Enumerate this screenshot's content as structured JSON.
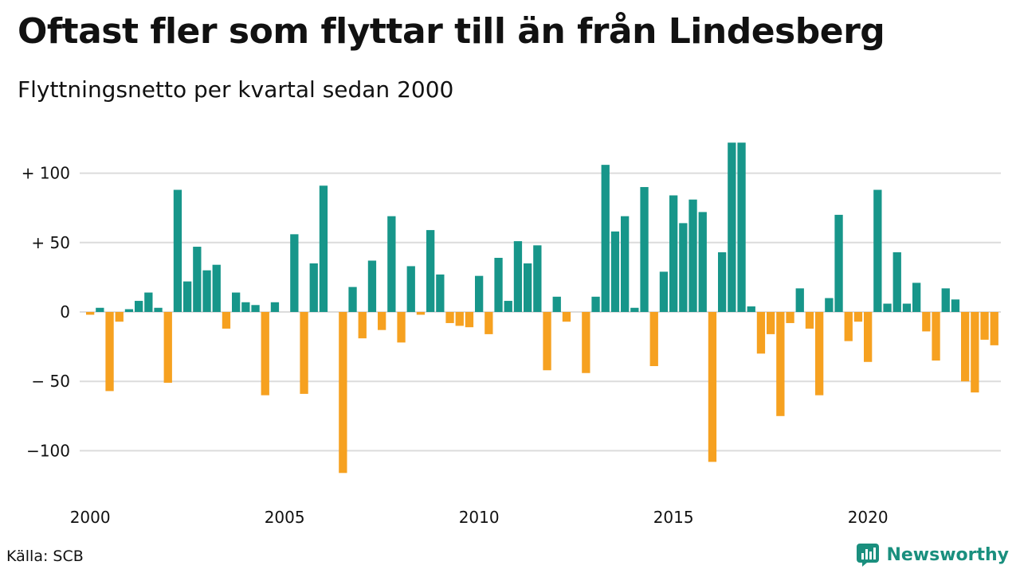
{
  "title": "Oftast fler som flyttar till än från Lindesberg",
  "subtitle": "Flyttningsnetto per kvartal sedan 2000",
  "source": "Källa: SCB",
  "brand": {
    "name": "Newsworthy",
    "icon": "newsworthy-logo-icon",
    "color": "#1a8f7e"
  },
  "colors": {
    "positive": "#17968a",
    "negative": "#f6a120",
    "grid": "#dcdcdc"
  },
  "chart_data": {
    "type": "bar",
    "title": "Oftast fler som flyttar till än från Lindesberg",
    "subtitle": "Flyttningsnetto per kvartal sedan 2000",
    "x_start": "2000-Q1",
    "x_ticks": [
      "2000",
      "2005",
      "2010",
      "2015",
      "2020"
    ],
    "y_ticks": [
      {
        "value": 100,
        "label": "+ 100"
      },
      {
        "value": 50,
        "label": "+  50"
      },
      {
        "value": 0,
        "label": "0"
      },
      {
        "value": -50,
        "label": "− 50"
      },
      {
        "value": -100,
        "label": "−100"
      }
    ],
    "ylim": [
      -120,
      124
    ],
    "grid": true,
    "series": [
      {
        "values": [
          -2,
          3,
          -57,
          -7,
          2,
          8,
          14,
          3,
          -51,
          88,
          22,
          47,
          30,
          34,
          -12,
          14,
          7,
          5,
          -60,
          7,
          0,
          56,
          -59,
          35,
          91,
          0,
          -116,
          18,
          -19,
          37,
          -13,
          69,
          -22,
          33,
          -2,
          59,
          27,
          -8,
          -10,
          -11,
          26,
          -16,
          39,
          8,
          51,
          35,
          48,
          -42,
          11,
          -7,
          0,
          -44,
          11,
          106,
          58,
          69,
          3,
          90,
          -39,
          29,
          84,
          64,
          81,
          72,
          -108,
          43,
          122,
          122,
          4,
          -30,
          -16,
          -75,
          -8,
          17,
          -12,
          -60,
          10,
          70,
          -21,
          -7,
          -36,
          88,
          6,
          43,
          6,
          21,
          -14,
          -35,
          17,
          9,
          -50,
          -58,
          -20,
          -24
        ]
      }
    ]
  }
}
